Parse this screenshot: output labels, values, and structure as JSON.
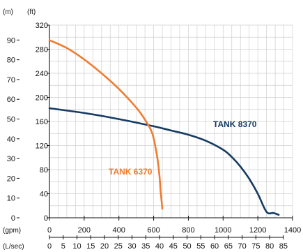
{
  "chart_data": {
    "type": "line",
    "grid": true,
    "unit_labels": {
      "y_meters": "(m)",
      "y_feet": "(ft)",
      "x_gpm": "(gpm)",
      "x_lsec": "(L/sec)"
    },
    "y_axis_ft": {
      "range": [
        0,
        320
      ],
      "ticks": [
        0,
        40,
        80,
        120,
        160,
        200,
        240,
        280,
        320
      ]
    },
    "y_axis_m": {
      "ticks": [
        0,
        10,
        20,
        30,
        40,
        50,
        60,
        70,
        80,
        90
      ]
    },
    "x_axis_gpm": {
      "range": [
        0,
        1400
      ],
      "ticks": [
        0,
        200,
        400,
        600,
        800,
        1000,
        1200,
        1400
      ]
    },
    "x_axis_lsec": {
      "ticks": [
        0,
        5,
        10,
        15,
        20,
        25,
        30,
        35,
        40,
        45,
        50,
        55,
        60,
        65,
        70,
        75,
        80,
        85
      ]
    },
    "series": [
      {
        "name": "TANK 8370",
        "color": "#163b63",
        "x": [
          0,
          200,
          400,
          600,
          700,
          800,
          900,
          1000,
          1050,
          1100,
          1150,
          1200,
          1250,
          1290,
          1320
        ],
        "y": [
          182,
          174,
          164,
          152,
          145,
          138,
          128,
          113,
          101,
          85,
          65,
          40,
          10,
          8,
          5
        ]
      },
      {
        "name": "TANK 6370",
        "color": "#ee7d33",
        "x": [
          0,
          100,
          200,
          300,
          400,
          500,
          550,
          590,
          610,
          625,
          635,
          640,
          645,
          650
        ],
        "y": [
          295,
          282,
          263,
          240,
          214,
          183,
          163,
          142,
          118,
          92,
          65,
          45,
          30,
          15
        ]
      }
    ],
    "annotations": [
      "TANK 8370",
      "TANK 6370"
    ]
  }
}
